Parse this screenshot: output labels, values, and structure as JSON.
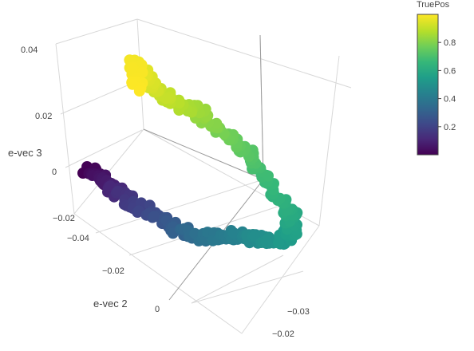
{
  "chart_data": {
    "type": "scatter3d",
    "title": "",
    "axes": {
      "z": {
        "label": "e-vec 3",
        "ticks": [
          "0.04",
          "0.02",
          "0",
          "−0.02"
        ]
      },
      "y": {
        "label": "e-vec 2",
        "ticks": [
          "−0.04",
          "−0.02",
          "0"
        ]
      },
      "x": {
        "label": "",
        "ticks": [
          "−0.03",
          "−0.02"
        ]
      }
    },
    "colorbar": {
      "title": "TruePos",
      "range": [
        0,
        1
      ],
      "ticks": [
        "0.8",
        "0.6",
        "0.4",
        "0.2"
      ],
      "tick_values": [
        0.8,
        0.6,
        0.4,
        0.2
      ],
      "colorscale": "viridis"
    },
    "point_path": {
      "description_of_trajectory": "points ordered by TruePos from 0 to 1",
      "truepos_range": [
        0.0,
        1.0
      ],
      "count": 420
    }
  }
}
